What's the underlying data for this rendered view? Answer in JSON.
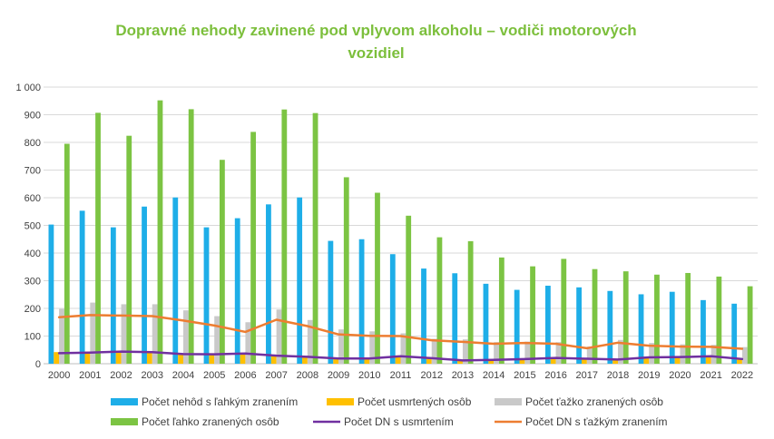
{
  "chart_data": {
    "type": "bar",
    "title": "Dopravné nehody zavinené pod vplyvom alkoholu – vodiči motorových vozidiel",
    "title_lines": [
      "Dopravné nehody zavinené pod vplyvom alkoholu – vodiči motorových",
      "vozidiel"
    ],
    "categories": [
      "2000",
      "2001",
      "2002",
      "2003",
      "2004",
      "2005",
      "2006",
      "2007",
      "2008",
      "2009",
      "2010",
      "2011",
      "2012",
      "2013",
      "2014",
      "2015",
      "2016",
      "2017",
      "2018",
      "2019",
      "2020",
      "2021",
      "2022"
    ],
    "ylim": [
      0,
      1000
    ],
    "yticks": [
      0,
      100,
      200,
      300,
      400,
      500,
      600,
      700,
      800,
      900,
      1000
    ],
    "ytick_labels": [
      "0",
      "100",
      "200",
      "300",
      "400",
      "500",
      "600",
      "700",
      "800",
      "900",
      "1 000"
    ],
    "grid": true,
    "legend_position": "bottom",
    "series": [
      {
        "name": "Počet nehôd s ľahkým zranením",
        "type": "bar",
        "color": "#1eaee8",
        "values": [
          503,
          553,
          493,
          568,
          601,
          493,
          526,
          576,
          601,
          444,
          450,
          396,
          344,
          327,
          289,
          267,
          282,
          276,
          263,
          251,
          260,
          230,
          217
        ]
      },
      {
        "name": "Počet usmrtených osôb",
        "type": "bar",
        "color": "#ffc000",
        "values": [
          42,
          44,
          45,
          44,
          38,
          38,
          40,
          30,
          28,
          20,
          20,
          30,
          20,
          12,
          15,
          18,
          22,
          20,
          16,
          25,
          25,
          30,
          18
        ]
      },
      {
        "name": "Počet ťažko zranených osôb",
        "type": "bar",
        "color": "#c9c9c9",
        "values": [
          198,
          221,
          215,
          215,
          193,
          172,
          150,
          196,
          158,
          124,
          117,
          110,
          90,
          88,
          78,
          80,
          78,
          62,
          86,
          75,
          70,
          68,
          60
        ]
      },
      {
        "name": "Počet ľahko zranených osôb",
        "type": "bar",
        "color": "#7cc443",
        "values": [
          795,
          907,
          824,
          952,
          920,
          737,
          838,
          919,
          906,
          674,
          618,
          535,
          457,
          443,
          384,
          352,
          379,
          342,
          334,
          322,
          328,
          315,
          280
        ]
      },
      {
        "name": "Počet DN  s usmrtením",
        "type": "line",
        "color": "#7030a0",
        "values": [
          38,
          40,
          44,
          42,
          35,
          34,
          37,
          29,
          25,
          19,
          19,
          27,
          20,
          12,
          14,
          17,
          21,
          18,
          15,
          23,
          24,
          27,
          17
        ]
      },
      {
        "name": "Počet DN s ťažkým zranením",
        "type": "line",
        "color": "#ed7d31",
        "values": [
          168,
          176,
          174,
          172,
          156,
          138,
          115,
          159,
          136,
          106,
          101,
          100,
          85,
          79,
          72,
          75,
          72,
          56,
          76,
          65,
          62,
          61,
          54
        ]
      }
    ]
  }
}
